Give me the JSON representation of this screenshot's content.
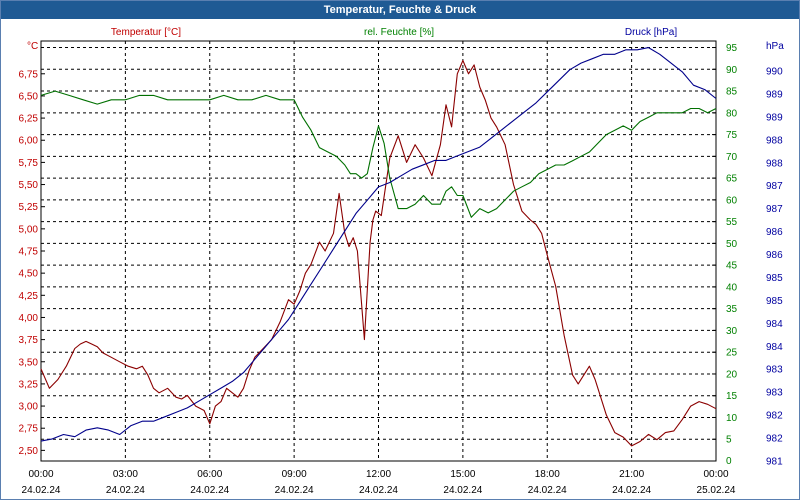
{
  "window": {
    "title": "Temperatur, Feuchte & Druck"
  },
  "chart_data": {
    "type": "line",
    "title": "Temperatur, Feuchte & Druck",
    "x_ticks": [
      {
        "time": "00:00",
        "date": "24.02.24"
      },
      {
        "time": "03:00",
        "date": "24.02.24"
      },
      {
        "time": "06:00",
        "date": "24.02.24"
      },
      {
        "time": "09:00",
        "date": "24.02.24"
      },
      {
        "time": "12:00",
        "date": "24.02.24"
      },
      {
        "time": "15:00",
        "date": "24.02.24"
      },
      {
        "time": "18:00",
        "date": "24.02.24"
      },
      {
        "time": "21:00",
        "date": "24.02.24"
      },
      {
        "time": "00:00",
        "date": "25.02.24"
      }
    ],
    "x_range_hours": [
      0,
      24
    ],
    "grid": true,
    "axes": {
      "temperature": {
        "label": "Temperatur [°C]",
        "unit": "°C",
        "color": "#c00000",
        "range": [
          2.38,
          7.12
        ],
        "ticks": [
          "2,50",
          "2,75",
          "3,00",
          "3,25",
          "3,50",
          "3,75",
          "4,00",
          "4,25",
          "4,50",
          "4,75",
          "5,00",
          "5,25",
          "5,50",
          "5,75",
          "6,00",
          "6,25",
          "6,50",
          "6,75"
        ]
      },
      "humidity": {
        "label": "rel. Feuchte [%]",
        "unit": "%",
        "color": "#008000",
        "range": [
          0,
          96.5
        ],
        "ticks": [
          "0",
          "5",
          "10",
          "15",
          "20",
          "25",
          "30",
          "35",
          "40",
          "45",
          "50",
          "55",
          "60",
          "65",
          "70",
          "75",
          "80",
          "85",
          "90",
          "95"
        ]
      },
      "pressure": {
        "label": "Druck [hPa]",
        "unit": "hPa",
        "color": "#0000a0",
        "range": [
          981,
          990.5
        ],
        "ticks": [
          "981",
          "982",
          "982",
          "983",
          "983",
          "984",
          "984",
          "985",
          "985",
          "986",
          "986",
          "987",
          "987",
          "988",
          "988",
          "989",
          "989",
          "990"
        ]
      }
    },
    "series": [
      {
        "name": "Temperatur",
        "axis": "temperature",
        "color": "#8b0000",
        "x": [
          0,
          0.3,
          0.6,
          0.9,
          1.2,
          1.4,
          1.6,
          1.8,
          2,
          2.2,
          2.5,
          2.8,
          3.1,
          3.4,
          3.6,
          3.8,
          4,
          4.2,
          4.5,
          4.8,
          5,
          5.2,
          5.5,
          5.8,
          6,
          6.2,
          6.4,
          6.6,
          6.8,
          7,
          7.2,
          7.4,
          7.6,
          7.9,
          8.2,
          8.5,
          8.8,
          9,
          9.2,
          9.4,
          9.6,
          9.9,
          10.1,
          10.4,
          10.6,
          10.8,
          10.95,
          11.1,
          11.25,
          11.5,
          11.7,
          11.8,
          11.9,
          12.1,
          12.4,
          12.7,
          13,
          13.3,
          13.6,
          13.9,
          14.2,
          14.4,
          14.6,
          14.8,
          15,
          15.2,
          15.4,
          15.6,
          15.8,
          16,
          16.2,
          16.5,
          16.8,
          17.1,
          17.4,
          17.6,
          17.8,
          18,
          18.3,
          18.6,
          18.9,
          19.1,
          19.3,
          19.5,
          19.7,
          19.9,
          20.1,
          20.4,
          20.7,
          21,
          21.3,
          21.6,
          21.9,
          22.2,
          22.5,
          22.8,
          23.1,
          23.4,
          23.7,
          24
        ],
        "values": [
          3.42,
          3.2,
          3.3,
          3.45,
          3.65,
          3.7,
          3.73,
          3.7,
          3.67,
          3.6,
          3.55,
          3.5,
          3.45,
          3.42,
          3.45,
          3.35,
          3.2,
          3.15,
          3.2,
          3.1,
          3.08,
          3.12,
          3.0,
          2.95,
          2.8,
          3.0,
          3.05,
          3.2,
          3.15,
          3.1,
          3.2,
          3.4,
          3.55,
          3.65,
          3.75,
          3.95,
          4.2,
          4.15,
          4.3,
          4.5,
          4.6,
          4.85,
          4.75,
          4.95,
          5.4,
          4.95,
          4.8,
          4.9,
          4.75,
          3.75,
          4.85,
          5.1,
          5.2,
          5.15,
          5.8,
          6.05,
          5.75,
          5.95,
          5.8,
          5.6,
          5.95,
          6.4,
          6.15,
          6.75,
          6.9,
          6.75,
          6.85,
          6.6,
          6.45,
          6.25,
          6.15,
          5.95,
          5.5,
          5.2,
          5.1,
          5.05,
          4.95,
          4.7,
          4.35,
          3.8,
          3.35,
          3.25,
          3.35,
          3.45,
          3.3,
          3.1,
          2.9,
          2.7,
          2.65,
          2.55,
          2.6,
          2.68,
          2.62,
          2.7,
          2.72,
          2.85,
          3.0,
          3.05,
          3.02,
          2.97
        ]
      },
      {
        "name": "rel. Feuchte",
        "axis": "humidity",
        "color": "#007000",
        "x": [
          0,
          0.5,
          1,
          1.5,
          2,
          2.5,
          3,
          3.5,
          4,
          4.5,
          5,
          5.5,
          6,
          6.5,
          7,
          7.5,
          8,
          8.5,
          9,
          9.3,
          9.6,
          9.9,
          10.2,
          10.5,
          10.8,
          11,
          11.2,
          11.4,
          11.6,
          11.8,
          12,
          12.2,
          12.4,
          12.7,
          13,
          13.3,
          13.6,
          13.9,
          14.2,
          14.4,
          14.6,
          14.8,
          15,
          15.3,
          15.6,
          15.9,
          16.2,
          16.5,
          16.8,
          17.1,
          17.4,
          17.7,
          18,
          18.3,
          18.6,
          18.9,
          19.2,
          19.5,
          19.8,
          20.1,
          20.4,
          20.7,
          21,
          21.3,
          21.6,
          21.9,
          22.2,
          22.5,
          22.8,
          23.1,
          23.4,
          23.7,
          24
        ],
        "values": [
          84,
          85,
          84,
          83,
          82,
          83,
          83,
          84,
          84,
          83,
          83,
          83,
          83,
          84,
          83,
          83,
          84,
          83,
          83,
          79,
          76,
          72,
          71,
          70,
          68,
          66,
          66,
          65,
          66,
          72,
          77,
          73,
          65,
          58,
          58,
          59,
          61,
          59,
          59,
          62,
          63,
          61,
          61,
          56,
          58,
          57,
          58,
          60,
          62,
          63,
          64,
          66,
          67,
          68,
          68,
          69,
          70,
          71,
          73,
          75,
          76,
          77,
          76,
          78,
          79,
          80,
          80,
          80,
          80,
          81,
          81,
          80,
          81
        ]
      },
      {
        "name": "Druck",
        "axis": "pressure",
        "color": "#00008b",
        "x": [
          0,
          0.4,
          0.8,
          1.2,
          1.6,
          2,
          2.4,
          2.8,
          3.2,
          3.6,
          4,
          4.4,
          4.8,
          5.2,
          5.6,
          6,
          6.4,
          6.8,
          7.2,
          7.6,
          8,
          8.4,
          8.8,
          9.2,
          9.6,
          10,
          10.4,
          10.8,
          11.2,
          11.6,
          12,
          12.4,
          12.8,
          13.2,
          13.6,
          14,
          14.4,
          14.8,
          15.2,
          15.6,
          16,
          16.4,
          16.8,
          17.2,
          17.6,
          18,
          18.4,
          18.8,
          19.2,
          19.6,
          20,
          20.4,
          20.8,
          21.2,
          21.6,
          22,
          22.4,
          22.8,
          23.2,
          23.6,
          24
        ],
        "values": [
          981.45,
          981.5,
          981.6,
          981.55,
          981.7,
          981.75,
          981.7,
          981.6,
          981.8,
          981.9,
          981.9,
          982.0,
          982.1,
          982.2,
          982.35,
          982.5,
          982.65,
          982.8,
          983.0,
          983.3,
          983.6,
          983.9,
          984.2,
          984.6,
          985.0,
          985.4,
          985.8,
          986.2,
          986.6,
          986.9,
          987.2,
          987.3,
          987.45,
          987.6,
          987.7,
          987.8,
          987.8,
          987.9,
          988.0,
          988.1,
          988.3,
          988.5,
          988.7,
          988.9,
          989.1,
          989.35,
          989.6,
          989.85,
          990.0,
          990.1,
          990.2,
          990.2,
          990.3,
          990.3,
          990.35,
          990.2,
          990.0,
          989.8,
          989.5,
          989.4,
          989.2
        ]
      }
    ]
  }
}
